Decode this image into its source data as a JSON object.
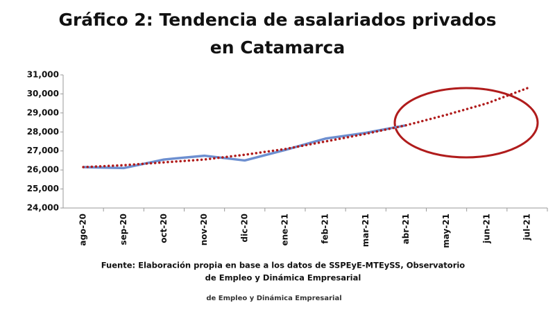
{
  "chart_data": {
    "type": "line",
    "title": [
      "Gráfico 2: Tendencia de asalariados privados",
      "en Catamarca"
    ],
    "categories": [
      "ago-20",
      "sep-20",
      "oct-20",
      "nov-20",
      "dic-20",
      "ene-21",
      "feb-21",
      "mar-21",
      "abr-21",
      "may-21",
      "jun-21",
      "jul-21"
    ],
    "series": [
      {
        "color": "#6d8fd0",
        "style": "solid",
        "values": [
          26150,
          26100,
          26550,
          26750,
          26500,
          27050,
          27650,
          27950,
          28350,
          null,
          null,
          null
        ]
      },
      {
        "color": "#b01c1c",
        "style": "dotted",
        "values": [
          26150,
          26250,
          26400,
          26550,
          26800,
          27100,
          27500,
          27900,
          28350,
          28900,
          29500,
          30300
        ]
      }
    ],
    "ylim": [
      24000,
      31000
    ],
    "yticks": [
      {
        "value": 24000,
        "label": "24,000"
      },
      {
        "value": 25000,
        "label": "25,000"
      },
      {
        "value": 26000,
        "label": "26,000"
      },
      {
        "value": 27000,
        "label": "27,000"
      },
      {
        "value": 28000,
        "label": "28,000"
      },
      {
        "value": 29000,
        "label": "29,000"
      },
      {
        "value": 30000,
        "label": "30,000"
      },
      {
        "value": 31000,
        "label": "31,000"
      }
    ],
    "grid": false,
    "source": [
      "Fuente: Elaboración propia en base a los datos de SSPEyE-MTEySS, Observatorio",
      "de Empleo y Dinámica Empresarial"
    ],
    "note": "de Empleo y Dinámica Empresarial"
  }
}
